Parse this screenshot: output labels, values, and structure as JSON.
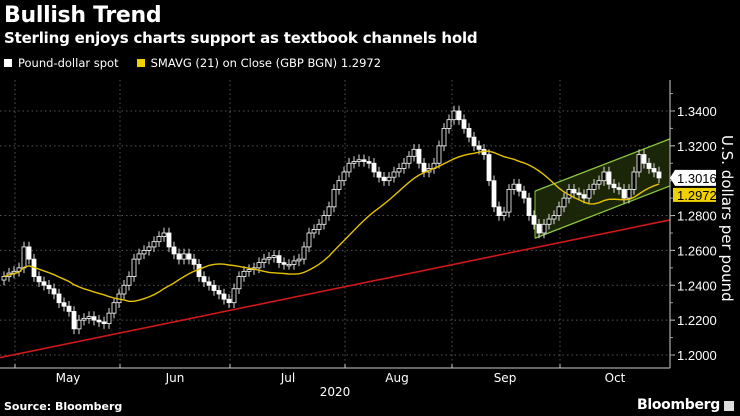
{
  "header": {
    "title": "Bullish Trend",
    "subtitle": "Sterling enjoys charts support as textbook channels hold"
  },
  "footer": {
    "source": "Source: Bloomberg",
    "logo": "Bloomberg"
  },
  "colors": {
    "background": "#000000",
    "candle": "#ffffff",
    "sma": "#e5c200",
    "trendline": "#d01818",
    "channel": "#8cc63f",
    "channel_fill": "#1e2a0a"
  },
  "chart_data": {
    "type": "candlestick",
    "title": "Bullish Trend",
    "subtitle": "Sterling enjoys charts support as textbook channels hold",
    "legend": [
      {
        "name": "Pound-dollar spot",
        "color": "#ffffff"
      },
      {
        "name": "SMAVG (21)  on Close (GBP BGN) 1.2972",
        "color": "#e5c200"
      }
    ],
    "legend_placement": "top-left",
    "ylabel": "U.S. dollars per pound",
    "xlabel": "2020",
    "x_ticks": [
      "May",
      "Jun",
      "Jul",
      "Aug",
      "Sep",
      "Oct"
    ],
    "y_ticks": [
      "1.2000",
      "1.2200",
      "1.2400",
      "1.2600",
      "1.2800",
      "1.3200",
      "1.3400"
    ],
    "ylim": [
      1.195,
      1.352
    ],
    "grid": true,
    "y_axis_side": "right",
    "last_price_label": "1.3016",
    "sma_label": "1.2972",
    "sma_period": 21,
    "closes": [
      1.245,
      1.247,
      1.248,
      1.25,
      1.262,
      1.255,
      1.245,
      1.242,
      1.24,
      1.238,
      1.235,
      1.23,
      1.228,
      1.225,
      1.215,
      1.22,
      1.221,
      1.222,
      1.22,
      1.219,
      1.218,
      1.224,
      1.23,
      1.235,
      1.24,
      1.245,
      1.255,
      1.258,
      1.26,
      1.262,
      1.265,
      1.268,
      1.27,
      1.262,
      1.258,
      1.255,
      1.258,
      1.255,
      1.252,
      1.245,
      1.242,
      1.24,
      1.237,
      1.235,
      1.232,
      1.23,
      1.238,
      1.245,
      1.248,
      1.249,
      1.25,
      1.253,
      1.255,
      1.256,
      1.257,
      1.253,
      1.252,
      1.252,
      1.254,
      1.255,
      1.262,
      1.27,
      1.272,
      1.275,
      1.28,
      1.285,
      1.295,
      1.3,
      1.305,
      1.31,
      1.311,
      1.312,
      1.311,
      1.31,
      1.305,
      1.302,
      1.3,
      1.302,
      1.305,
      1.307,
      1.31,
      1.314,
      1.318,
      1.31,
      1.305,
      1.307,
      1.31,
      1.32,
      1.33,
      1.335,
      1.34,
      1.335,
      1.33,
      1.325,
      1.32,
      1.318,
      1.315,
      1.3,
      1.285,
      1.28,
      1.282,
      1.295,
      1.298,
      1.294,
      1.29,
      1.28,
      1.275,
      1.27,
      1.275,
      1.278,
      1.28,
      1.285,
      1.29,
      1.295,
      1.293,
      1.292,
      1.29,
      1.295,
      1.298,
      1.3,
      1.305,
      1.298,
      1.296,
      1.295,
      1.29,
      1.295,
      1.305,
      1.315,
      1.31,
      1.307,
      1.305,
      1.3016
    ],
    "trendline": {
      "start": 1.1985,
      "end": 1.2775
    },
    "channel": {
      "lower_start": 1.267,
      "lower_end": 1.297,
      "upper_start": 1.294,
      "upper_end": 1.324
    }
  }
}
